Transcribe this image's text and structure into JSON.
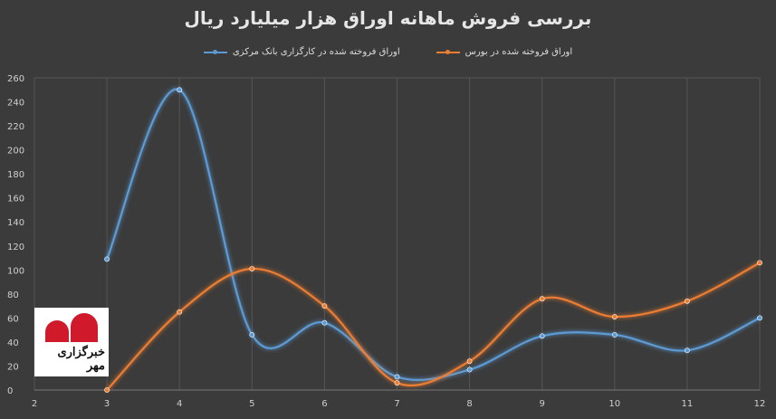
{
  "chart_data": {
    "type": "line",
    "title": "بررسی فروش ماهانه اوراق هزار میلیارد ریال",
    "x": [
      2,
      3,
      4,
      5,
      6,
      7,
      8,
      9,
      10,
      11,
      12
    ],
    "xlim": [
      2,
      12
    ],
    "ylim": [
      0,
      260
    ],
    "y_ticks": [
      0,
      20,
      40,
      60,
      80,
      100,
      120,
      140,
      160,
      180,
      200,
      220,
      240,
      260
    ],
    "x_ticks": [
      2,
      3,
      4,
      5,
      6,
      7,
      8,
      9,
      10,
      11,
      12
    ],
    "grid": "vertical",
    "legend_position": "top",
    "series": [
      {
        "name": "اوراق  فروخته  شده در کارگزاری بانک مرکزی",
        "color": "#5b9bd5",
        "x": [
          3,
          4,
          5,
          6,
          7,
          8,
          9,
          10,
          11,
          12
        ],
        "values": [
          109,
          250,
          46,
          56,
          11,
          17,
          45,
          46,
          33,
          60
        ]
      },
      {
        "name": "اوراق  فروخته  شده در بورس",
        "color": "#ed7d31",
        "x": [
          3,
          4,
          5,
          6,
          7,
          8,
          9,
          10,
          11,
          12
        ],
        "values": [
          0,
          65,
          101,
          70,
          6,
          24,
          76,
          61,
          74,
          106
        ]
      }
    ]
  },
  "logo": {
    "text": "خبرگزاری مهر"
  }
}
